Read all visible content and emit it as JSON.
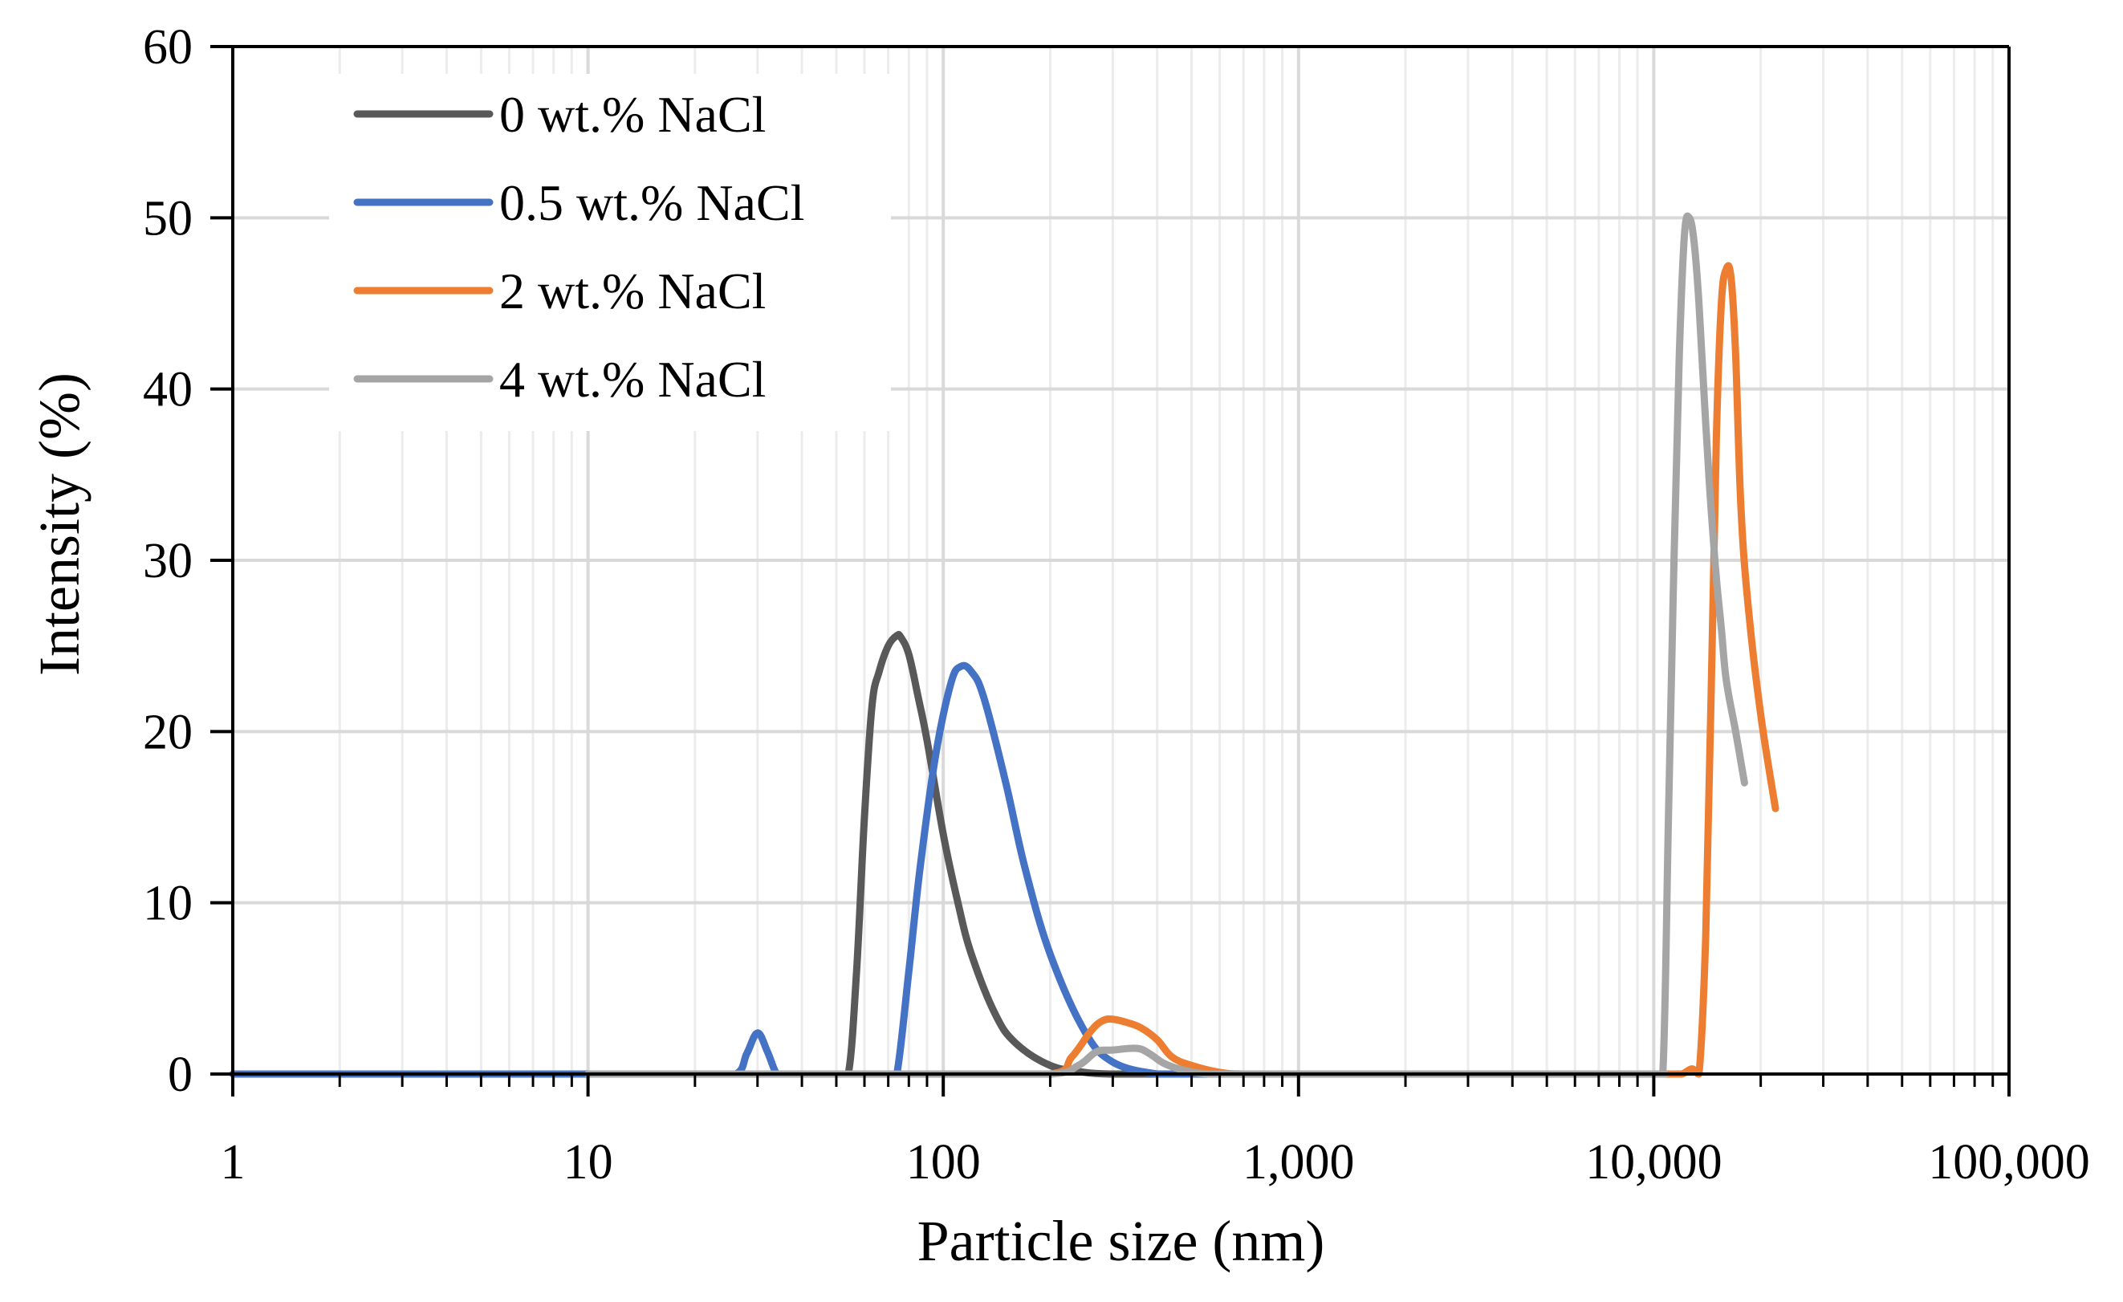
{
  "colors": {
    "grid_major": "#d9d9d9",
    "grid_minor": "#ececec",
    "axis": "#000000"
  },
  "chart_data": {
    "type": "line",
    "title": "",
    "xlabel": "Particle size (nm)",
    "ylabel": "Intensity (%)",
    "x_scale": "log",
    "xlim": [
      1,
      100000
    ],
    "ylim": [
      0,
      60
    ],
    "x_ticks": [
      1,
      10,
      100,
      1000,
      10000,
      100000
    ],
    "x_tick_labels": [
      "1",
      "10",
      "100",
      "1,000",
      "10,000",
      "100,000"
    ],
    "y_ticks": [
      0,
      10,
      20,
      30,
      40,
      50,
      60
    ],
    "y_tick_labels": [
      "0",
      "10",
      "20",
      "30",
      "40",
      "50",
      "60"
    ],
    "grid": true,
    "legend_position": "top-left",
    "series": [
      {
        "name": "0 wt.% NaCl",
        "color": "#595959",
        "x": [
          10,
          30,
          50,
          54,
          57,
          60,
          63,
          66,
          70,
          74,
          76,
          80,
          85,
          90,
          100,
          110,
          120,
          140,
          160,
          200,
          250,
          300,
          400,
          500,
          1000,
          5000,
          10000
        ],
        "y": [
          0,
          0,
          0,
          0,
          6,
          15,
          21.5,
          23.5,
          25,
          25.6,
          25.5,
          24.5,
          22,
          19.5,
          14,
          10,
          7,
          3.5,
          1.8,
          0.5,
          0.1,
          0,
          0,
          0,
          0,
          0,
          0
        ]
      },
      {
        "name": "0.5 wt.% NaCl",
        "color": "#4472c4",
        "x": [
          1,
          2,
          5,
          10,
          20,
          26,
          28,
          30,
          32,
          34,
          36,
          40,
          50,
          60,
          70,
          74,
          80,
          86,
          95,
          105,
          112,
          120,
          130,
          150,
          170,
          200,
          250,
          300,
          400,
          500,
          1000
        ],
        "y": [
          0,
          0,
          0,
          0,
          0,
          0,
          1.2,
          2.4,
          1.3,
          0,
          0,
          0,
          0,
          0,
          0,
          0,
          6,
          12,
          18.5,
          22.8,
          23.8,
          23.5,
          22,
          17,
          12,
          7,
          2.5,
          0.7,
          0,
          0,
          0
        ]
      },
      {
        "name": "2 wt.% NaCl",
        "color": "#ed7d31",
        "x": [
          10,
          100,
          200,
          230,
          260,
          280,
          300,
          330,
          360,
          400,
          440,
          500,
          600,
          700,
          1000,
          5000,
          10000,
          11000,
          12000,
          12800,
          13400,
          14000,
          14500,
          15000,
          15500,
          16000,
          16500,
          17000,
          17600,
          18500,
          20000,
          22000
        ],
        "y": [
          0,
          0,
          0,
          1,
          2.5,
          3.1,
          3.2,
          3,
          2.7,
          2,
          1,
          0.5,
          0.1,
          0,
          0,
          0,
          0,
          0,
          0,
          0.3,
          0,
          8,
          22,
          37,
          45,
          47,
          46.5,
          42,
          33,
          27,
          21,
          15.5
        ]
      },
      {
        "name": "4 wt.% NaCl",
        "color": "#a5a5a5",
        "x": [
          10,
          100,
          200,
          240,
          270,
          300,
          350,
          380,
          420,
          480,
          560,
          700,
          1000,
          5000,
          10000,
          10600,
          11000,
          11400,
          11800,
          12200,
          12600,
          13000,
          13400,
          14000,
          14500,
          15000,
          15500,
          16000,
          17000,
          18000
        ],
        "y": [
          0,
          0,
          0,
          0.5,
          1.3,
          1.4,
          1.5,
          1.2,
          0.6,
          0.2,
          0,
          0,
          0,
          0,
          0,
          0,
          15,
          30,
          42,
          49,
          50,
          48.5,
          45,
          38,
          33,
          29,
          26,
          23,
          20,
          17
        ]
      }
    ]
  }
}
